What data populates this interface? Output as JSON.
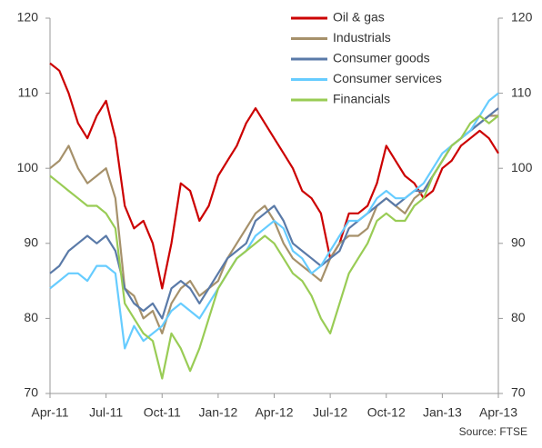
{
  "chart_data": {
    "type": "line",
    "categories": [
      "Apr-11",
      null,
      null,
      null,
      null,
      null,
      "Jul-11",
      null,
      null,
      null,
      null,
      null,
      "Oct-11",
      null,
      null,
      null,
      null,
      null,
      "Jan-12",
      null,
      null,
      null,
      null,
      null,
      "Apr-12",
      null,
      null,
      null,
      null,
      null,
      "Jul-12",
      null,
      null,
      null,
      null,
      null,
      "Oct-12",
      null,
      null,
      null,
      null,
      null,
      "Jan-13",
      null,
      null,
      null,
      null,
      null,
      "Apr-13"
    ],
    "series": [
      {
        "name": "Oil & gas",
        "color": "#cc0000",
        "values": [
          114,
          113,
          110,
          106,
          104,
          107,
          109,
          104,
          95,
          92,
          93,
          90,
          84,
          90,
          98,
          97,
          93,
          95,
          99,
          101,
          103,
          106,
          108,
          106,
          104,
          102,
          100,
          97,
          96,
          94,
          88,
          90,
          94,
          94,
          95,
          98,
          103,
          101,
          99,
          98,
          96,
          97,
          100,
          101,
          103,
          104,
          105,
          104,
          102
        ]
      },
      {
        "name": "Industrials",
        "color": "#a6916b",
        "values": [
          100,
          101,
          103,
          100,
          98,
          99,
          100,
          96,
          84,
          83,
          80,
          81,
          78,
          82,
          84,
          85,
          83,
          84,
          85,
          88,
          90,
          92,
          94,
          95,
          93,
          90,
          88,
          87,
          86,
          85,
          88,
          90,
          91,
          91,
          92,
          95,
          96,
          95,
          94,
          96,
          97,
          99,
          101,
          103,
          104,
          105,
          106,
          107,
          107
        ]
      },
      {
        "name": "Consumer goods",
        "color": "#5a7aa8",
        "values": [
          86,
          87,
          89,
          90,
          91,
          90,
          91,
          89,
          84,
          82,
          81,
          82,
          80,
          84,
          85,
          84,
          82,
          84,
          86,
          88,
          89,
          90,
          93,
          94,
          95,
          93,
          90,
          89,
          88,
          87,
          88,
          89,
          92,
          93,
          94,
          95,
          96,
          95,
          96,
          97,
          97,
          99,
          101,
          103,
          104,
          105,
          106,
          107,
          108
        ]
      },
      {
        "name": "Consumer services",
        "color": "#66ccff",
        "values": [
          84,
          85,
          86,
          86,
          85,
          87,
          87,
          86,
          76,
          79,
          77,
          78,
          79,
          81,
          82,
          81,
          80,
          82,
          84,
          86,
          88,
          89,
          91,
          92,
          93,
          92,
          89,
          88,
          86,
          87,
          89,
          91,
          93,
          93,
          94,
          96,
          97,
          96,
          96,
          97,
          98,
          100,
          102,
          103,
          104,
          105,
          107,
          109,
          110
        ]
      },
      {
        "name": "Financials",
        "color": "#99cc55",
        "values": [
          99,
          98,
          97,
          96,
          95,
          95,
          94,
          92,
          82,
          80,
          78,
          77,
          72,
          78,
          76,
          73,
          76,
          80,
          84,
          86,
          88,
          89,
          90,
          91,
          90,
          88,
          86,
          85,
          83,
          80,
          78,
          82,
          86,
          88,
          90,
          93,
          94,
          93,
          93,
          95,
          96,
          99,
          101,
          103,
          104,
          106,
          107,
          106,
          107
        ]
      }
    ],
    "ylim": [
      70,
      120
    ],
    "yticks": [
      70,
      80,
      90,
      100,
      110,
      120
    ],
    "y2lim": [
      70,
      120
    ],
    "y2ticks": [
      70,
      80,
      90,
      100,
      110,
      120
    ],
    "legend": "top-right",
    "source": "Source: FTSE"
  }
}
